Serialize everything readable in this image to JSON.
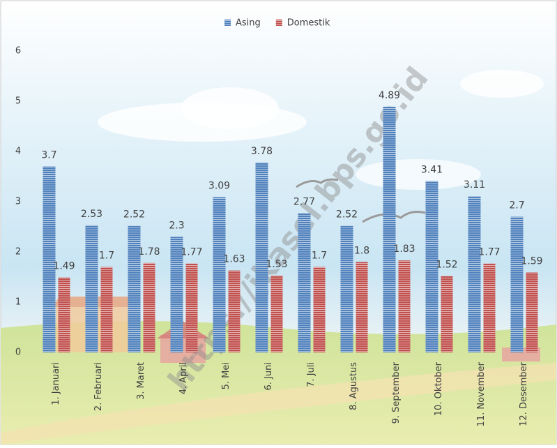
{
  "chart_data": {
    "type": "bar",
    "categories": [
      "1. Januari",
      "2. Februari",
      "3. Maret",
      "4. April",
      "5. Mei",
      "6. Juni",
      "7. Juli",
      "8. Agustus",
      "9. September",
      "10. Oktober",
      "11. November",
      "12. Desember"
    ],
    "series": [
      {
        "name": "Asing",
        "color": "#4f81bd",
        "values": [
          3.7,
          2.53,
          2.52,
          2.3,
          3.09,
          3.78,
          2.77,
          2.52,
          4.89,
          3.41,
          3.11,
          2.7
        ]
      },
      {
        "name": "Domestik",
        "color": "#c0504d",
        "values": [
          1.49,
          1.7,
          1.78,
          1.77,
          1.63,
          1.53,
          1.7,
          1.8,
          1.83,
          1.52,
          1.77,
          1.59
        ]
      }
    ],
    "ylim": [
      0,
      6
    ],
    "yticks": [
      0,
      1,
      2,
      3,
      4,
      5,
      6
    ],
    "grid": false,
    "legend": "top",
    "watermark": "https://jkasel.bps.go.id"
  }
}
